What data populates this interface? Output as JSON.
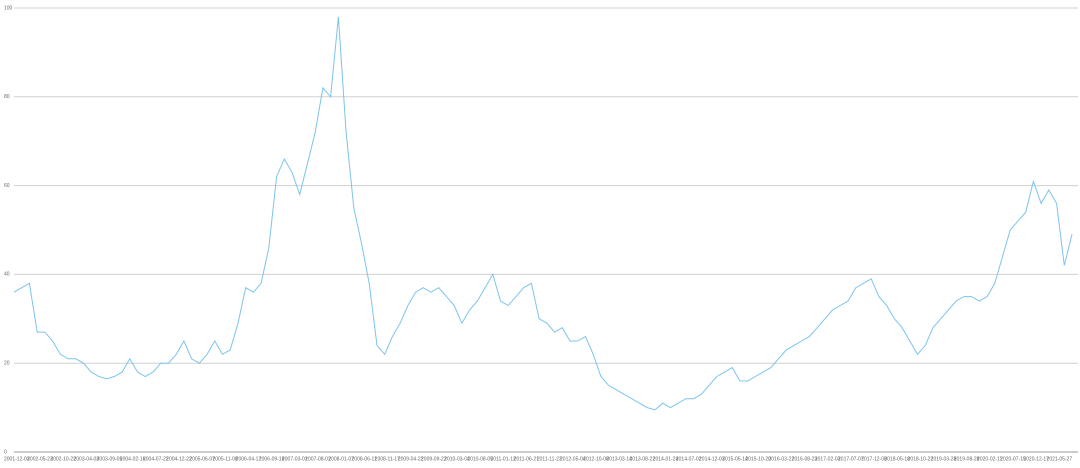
{
  "chart_data": {
    "type": "line",
    "categories": [
      "2001-12-03",
      null,
      null,
      "2002-05-23",
      null,
      null,
      "2002-10-22",
      null,
      null,
      "2003-04-03",
      null,
      null,
      "2003-09-05",
      null,
      null,
      "2004-02-16",
      null,
      null,
      "2004-07-22",
      null,
      null,
      "2004-12-22",
      null,
      null,
      "2005-06-07",
      null,
      null,
      "2005-11-08",
      null,
      null,
      "2006-04-17",
      null,
      null,
      "2006-09-18",
      null,
      null,
      "2007-03-01",
      null,
      null,
      "2007-08-02",
      null,
      null,
      "2008-01-07",
      null,
      null,
      "2008-06-11",
      null,
      null,
      "2008-11-17",
      null,
      null,
      "2009-04-22",
      null,
      null,
      "2009-09-22",
      null,
      null,
      "2010-03-04",
      null,
      null,
      "2010-08-05",
      null,
      null,
      "2011-01-12",
      null,
      null,
      "2011-06-21",
      null,
      null,
      "2011-11-23",
      null,
      null,
      "2012-05-04",
      null,
      null,
      "2012-10-08",
      null,
      null,
      "2013-03-14",
      null,
      null,
      "2013-08-22",
      null,
      null,
      "2014-01-24",
      null,
      null,
      "2014-07-02",
      null,
      null,
      "2014-12-03",
      null,
      null,
      "2015-05-14",
      null,
      null,
      "2015-10-20",
      null,
      null,
      "2016-03-22",
      null,
      null,
      "2016-08-23",
      null,
      null,
      "2017-02-03",
      null,
      null,
      "2017-07-07",
      null,
      null,
      "2017-12-08",
      null,
      null,
      "2018-05-18",
      null,
      null,
      "2018-10-22",
      null,
      null,
      "2019-03-28",
      null,
      null,
      "2019-08-28",
      null,
      null,
      "2020-02-11",
      null,
      null,
      "2020-07-15",
      null,
      null,
      "2020-12-17",
      null,
      null,
      "2021-05-27",
      null,
      null
    ],
    "series": [
      {
        "color": "#7cc4ec",
        "values": [
          36,
          37,
          38,
          27,
          27,
          25,
          22,
          21,
          21,
          20,
          18,
          17,
          16.5,
          17,
          18,
          21,
          18,
          17,
          18,
          20,
          20,
          22,
          25,
          21,
          20,
          22,
          25,
          22,
          23,
          29,
          37,
          36,
          38,
          46,
          62,
          66,
          63,
          58,
          65,
          72,
          82,
          80,
          98,
          72,
          55,
          47,
          38,
          24,
          22,
          26,
          29,
          33,
          36,
          37,
          36,
          37,
          35,
          33,
          29,
          32,
          34,
          37,
          40,
          34,
          33,
          35,
          37,
          38,
          30,
          29,
          27,
          28,
          25,
          25,
          26,
          22,
          17,
          15,
          14,
          13,
          12,
          11,
          10,
          9.5,
          11,
          10,
          11,
          12,
          12,
          13,
          15,
          17,
          18,
          19,
          16,
          16,
          17,
          18,
          19,
          21,
          23,
          24,
          25,
          26,
          28,
          30,
          32,
          33,
          34,
          37,
          38,
          39,
          35,
          33,
          30,
          28,
          25,
          22,
          24,
          28,
          30,
          32,
          34,
          35,
          35,
          34,
          35,
          38,
          44,
          50,
          52,
          54,
          61,
          56,
          59,
          56,
          42,
          49
        ]
      }
    ],
    "ylim": [
      0,
      100
    ],
    "yticks": [
      0,
      20,
      40,
      60,
      80,
      100
    ],
    "grid": true
  }
}
